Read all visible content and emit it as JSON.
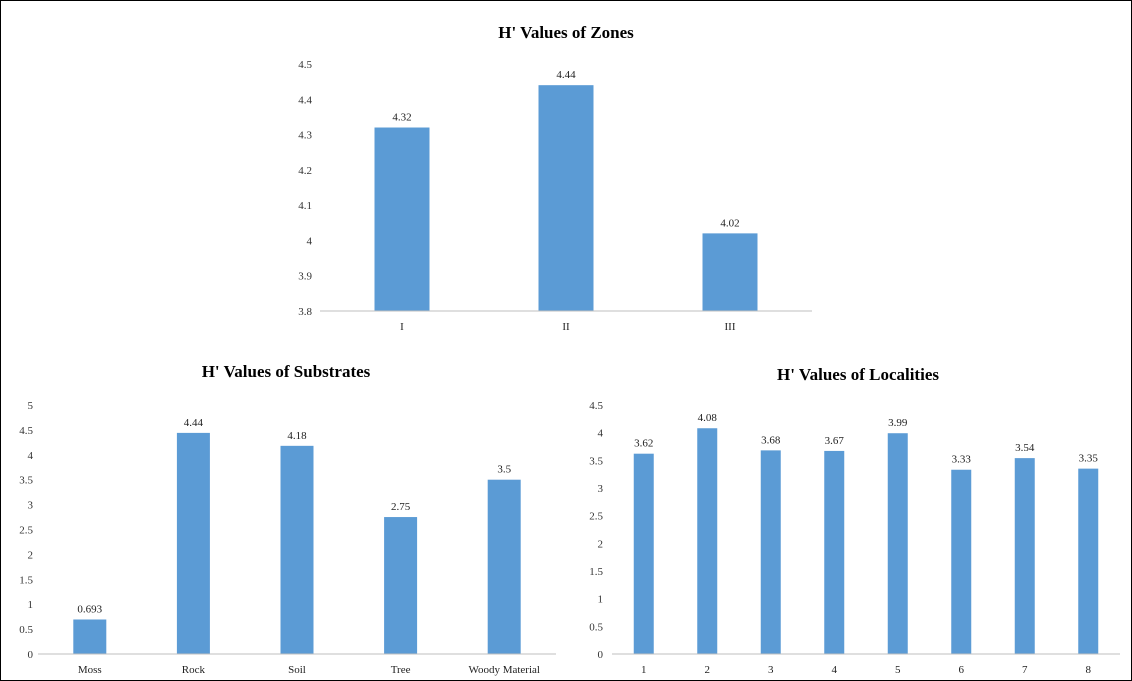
{
  "bar_color": "#5b9bd5",
  "axis_color": "#bfbfbf",
  "chart_data": [
    {
      "type": "bar",
      "title": "H' Values of Zones",
      "categories": [
        "I",
        "II",
        "III"
      ],
      "values": [
        4.32,
        4.44,
        4.02
      ],
      "value_labels": [
        "4.32",
        "4.44",
        "4.02"
      ],
      "ylim": [
        3.8,
        4.5
      ],
      "yticks": [
        "3.8",
        "3.9",
        "4",
        "4.1",
        "4.2",
        "4.3",
        "4.4",
        "4.5"
      ],
      "grid": false,
      "legend": "none"
    },
    {
      "type": "bar",
      "title": "H' Values of Substrates",
      "categories": [
        "Moss",
        "Rock",
        "Soil",
        "Tree",
        "Woody Material"
      ],
      "values": [
        0.693,
        4.44,
        4.18,
        2.75,
        3.5
      ],
      "value_labels": [
        "0.693",
        "4.44",
        "4.18",
        "2.75",
        "3.5"
      ],
      "ylim": [
        0,
        5
      ],
      "yticks": [
        "0",
        "0.5",
        "1",
        "1.5",
        "2",
        "2.5",
        "3",
        "3.5",
        "4",
        "4.5",
        "5"
      ],
      "grid": false,
      "legend": "none"
    },
    {
      "type": "bar",
      "title": "H' Values of Localities",
      "categories": [
        "1",
        "2",
        "3",
        "4",
        "5",
        "6",
        "7",
        "8"
      ],
      "values": [
        3.62,
        4.08,
        3.68,
        3.67,
        3.99,
        3.33,
        3.54,
        3.35
      ],
      "value_labels": [
        "3.62",
        "4.08",
        "3.68",
        "3.67",
        "3.99",
        "3.33",
        "3.54",
        "3.35"
      ],
      "ylim": [
        0,
        4.5
      ],
      "yticks": [
        "0",
        "0.5",
        "1",
        "1.5",
        "2",
        "2.5",
        "3",
        "3.5",
        "4",
        "4.5"
      ],
      "grid": false,
      "legend": "none"
    }
  ]
}
